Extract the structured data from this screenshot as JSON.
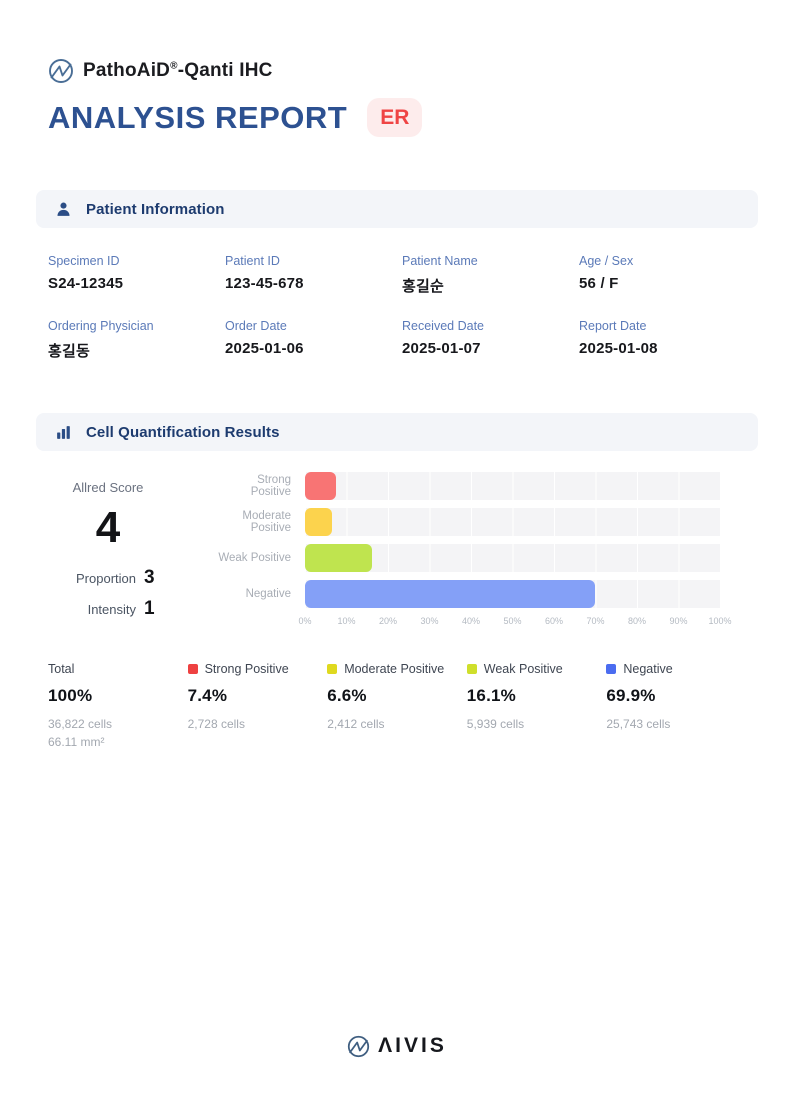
{
  "brand": {
    "product": "PathoAiD",
    "registered": "®",
    "suffix": "-Qanti IHC"
  },
  "title": {
    "text": "ANALYSIS REPORT",
    "badge": "ER"
  },
  "patient_info": {
    "title": "Patient Information",
    "fields": [
      {
        "label": "Specimen ID",
        "value": "S24-12345"
      },
      {
        "label": "Patient ID",
        "value": "123-45-678"
      },
      {
        "label": "Patient Name",
        "value": "홍길순"
      },
      {
        "label": "Age / Sex",
        "value": "56 / F"
      },
      {
        "label": "Ordering Physician",
        "value": "홍길동"
      },
      {
        "label": "Order Date",
        "value": "2025-01-06"
      },
      {
        "label": "Received Date",
        "value": "2025-01-07"
      },
      {
        "label": "Report Date",
        "value": "2025-01-08"
      }
    ]
  },
  "quant": {
    "title": "Cell Quantification Results",
    "allred": {
      "label": "Allred Score",
      "score": "4",
      "proportion_label": "Proportion",
      "proportion_value": "3",
      "intensity_label": "Intensity",
      "intensity_value": "1"
    }
  },
  "chart_data": {
    "type": "bar",
    "orientation": "horizontal",
    "title": "Cell Quantification Results",
    "categories": [
      "Strong Positive",
      "Moderate Positive",
      "Weak Positive",
      "Negative"
    ],
    "values": [
      7.4,
      6.6,
      16.1,
      69.9
    ],
    "colors": [
      "#f87474",
      "#fcd34d",
      "#bfe44f",
      "#84a0f7"
    ],
    "xlim": [
      0,
      100
    ],
    "xticks": [
      "0%",
      "10%",
      "20%",
      "30%",
      "40%",
      "50%",
      "60%",
      "70%",
      "80%",
      "90%",
      "100%"
    ],
    "grid": true,
    "track_color": "#f4f4f6"
  },
  "stats": {
    "columns": [
      {
        "label": "Total",
        "swatch": null,
        "percent": "100%",
        "cells": "36,822 cells",
        "area": "66.11 mm²"
      },
      {
        "label": "Strong Positive",
        "swatch": "#ee4141",
        "percent": "7.4%",
        "cells": "2,728 cells"
      },
      {
        "label": "Moderate Positive",
        "swatch": "#dfd91f",
        "percent": "6.6%",
        "cells": "2,412 cells"
      },
      {
        "label": "Weak Positive",
        "swatch": "#cfdf2b",
        "percent": "16.1%",
        "cells": "5,939 cells"
      },
      {
        "label": "Negative",
        "swatch": "#4b6cf0",
        "percent": "69.9%",
        "cells": "25,743 cells"
      }
    ]
  },
  "footer": {
    "brand": "ΛIVIS"
  },
  "colors": {
    "accent_navy": "#2d5191",
    "badge_red": "#ef4444",
    "badge_bg": "#fdecec",
    "label_blue": "#5b7ab8",
    "section_bg": "#f3f5f9"
  }
}
